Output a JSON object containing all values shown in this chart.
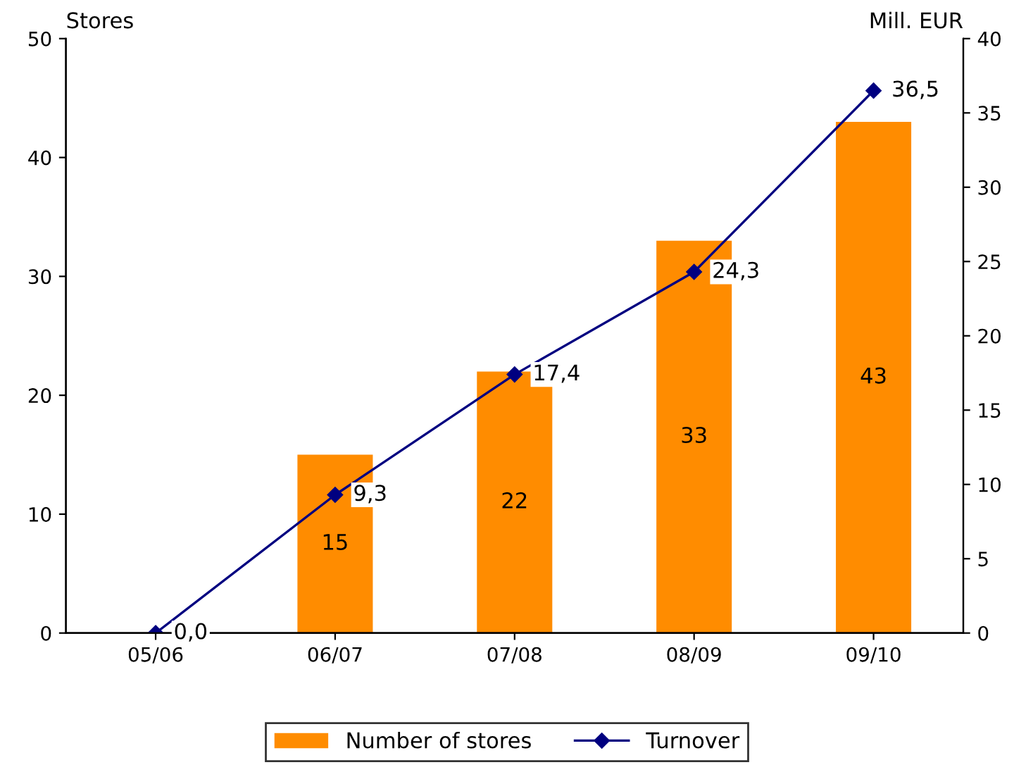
{
  "chart_data": {
    "type": "bar",
    "ylabel": "Stores",
    "y2label": "Mill. EUR",
    "categories": [
      "05/06",
      "06/07",
      "07/08",
      "08/09",
      "09/10"
    ],
    "series": [
      {
        "name": "Number of stores",
        "color": "#ff8c00",
        "values": [
          0,
          15,
          22,
          33,
          43
        ],
        "value_labels": [
          null,
          "15",
          "22",
          "33",
          "43"
        ]
      },
      {
        "name": "Turnover",
        "type": "line",
        "axis": "y2",
        "color": "#000080",
        "marker": "diamond",
        "values": [
          0.0,
          9.3,
          17.4,
          24.3,
          36.5
        ],
        "value_labels": [
          "0,0",
          "9,3",
          "17,4",
          "24,3",
          "36,5"
        ]
      }
    ],
    "ylim": [
      0,
      50
    ],
    "yticks": [
      0,
      10,
      20,
      30,
      40,
      50
    ],
    "y2lim": [
      0,
      40
    ],
    "y2ticks": [
      0,
      5,
      10,
      15,
      20,
      25,
      30,
      35,
      40
    ],
    "legend": "bottom"
  }
}
